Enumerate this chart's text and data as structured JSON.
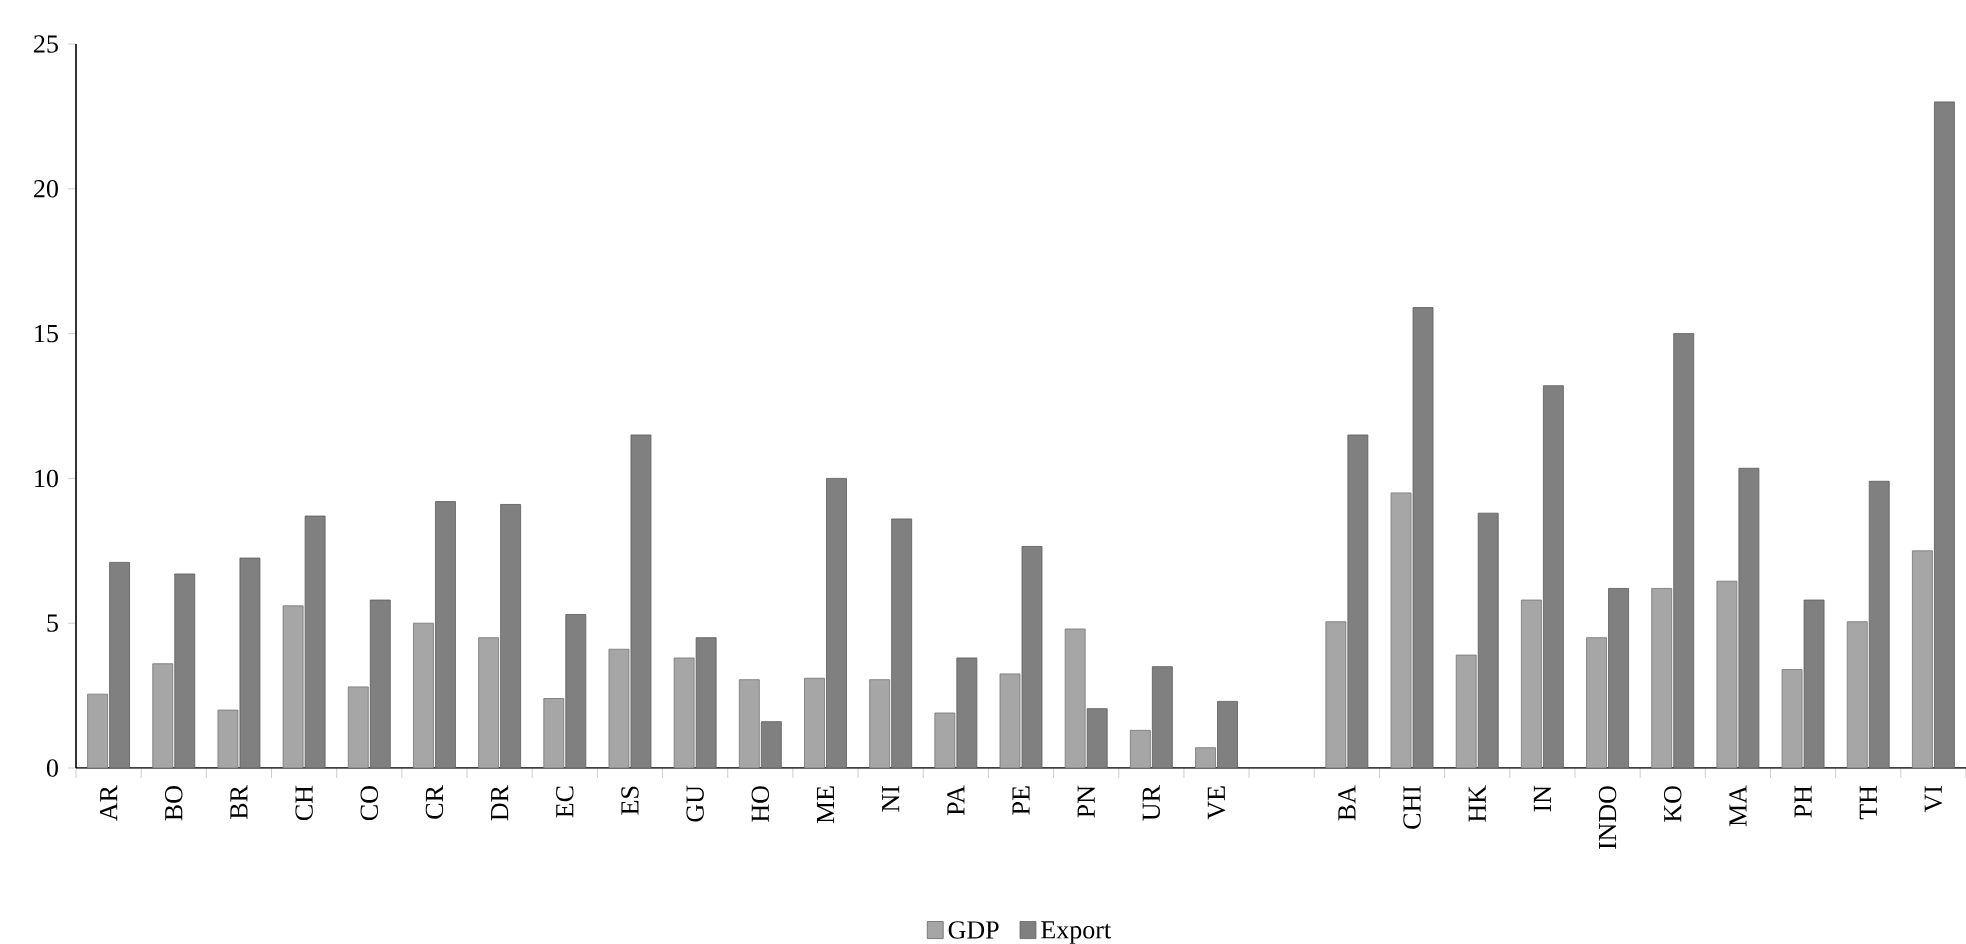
{
  "chart_data": {
    "type": "bar",
    "categories": [
      "AR",
      "BO",
      "BR",
      "CH",
      "CO",
      "CR",
      "DR",
      "EC",
      "ES",
      "GU",
      "HO",
      "ME",
      "NI",
      "PA",
      "PE",
      "PN",
      "UR",
      "VE",
      null,
      "BA",
      "CHI",
      "HK",
      "IN",
      "INDO",
      "KO",
      "MA",
      "PH",
      "TH",
      "VI"
    ],
    "series": [
      {
        "name": "GDP",
        "color": "#a6a6a6",
        "values": [
          2.55,
          3.6,
          2.0,
          5.6,
          2.8,
          5.0,
          4.5,
          2.4,
          4.1,
          3.8,
          3.05,
          3.1,
          3.05,
          1.9,
          3.25,
          4.8,
          1.3,
          0.7,
          null,
          5.05,
          9.5,
          3.9,
          5.8,
          4.5,
          6.2,
          6.45,
          3.4,
          5.05,
          7.5
        ]
      },
      {
        "name": "Export",
        "color": "#808080",
        "values": [
          7.1,
          6.7,
          7.25,
          8.7,
          5.8,
          9.2,
          9.1,
          5.3,
          11.5,
          4.5,
          1.6,
          10.0,
          8.6,
          3.8,
          7.65,
          2.05,
          3.5,
          2.3,
          null,
          11.5,
          15.9,
          8.8,
          13.2,
          6.2,
          15.0,
          10.35,
          5.8,
          9.9,
          23.0
        ]
      }
    ],
    "ylim": [
      0,
      25
    ],
    "yticks": [
      0,
      5,
      10,
      15,
      20,
      25
    ],
    "grid": false,
    "legend": "bottom"
  }
}
